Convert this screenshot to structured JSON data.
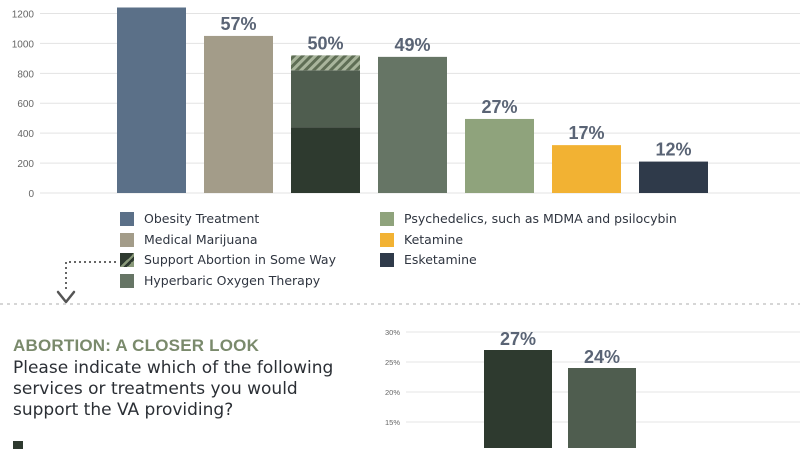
{
  "chart_data": [
    {
      "type": "bar",
      "y_ticks": [
        0,
        200,
        400,
        600,
        800,
        1000,
        1200
      ],
      "ylim": [
        0,
        1250
      ],
      "grid": true,
      "bars": [
        {
          "series": "Obesity Treatment",
          "value": 1240,
          "label": "",
          "color": "#5b7088"
        },
        {
          "series": "Medical Marijuana",
          "value": 1050,
          "label": "57%",
          "color": "#a39c89"
        },
        {
          "series": "Support Abortion in Some Way",
          "value": 920,
          "label": "50%",
          "color": "#2e3a2f",
          "segments": [
            {
              "name": "Support Abortion in Some Way",
              "value": 440,
              "color": "#2e3a2f"
            },
            {
              "name": "Hyperbaric Oxygen Therapy",
              "value": 380,
              "color": "#4f5d4f"
            },
            {
              "name": "hatched",
              "value": 100,
              "color": "#7e8c72"
            }
          ]
        },
        {
          "series": "Hyperbaric Oxygen Therapy",
          "value": 910,
          "label": "49%",
          "color": "#667565"
        },
        {
          "series": "Psychedelics, such as MDMA and psilocybin",
          "value": 495,
          "label": "27%",
          "color": "#8fa37c"
        },
        {
          "series": "Ketamine",
          "value": 320,
          "label": "17%",
          "color": "#f2b233"
        },
        {
          "series": "Esketamine",
          "value": 210,
          "label": "12%",
          "color": "#2f3a4a"
        }
      ]
    },
    {
      "type": "bar",
      "y_ticks": [
        "15%",
        "20%",
        "25%",
        "30%"
      ],
      "y_tick_values": [
        15,
        20,
        25,
        30
      ],
      "ylim": [
        13.5,
        31
      ],
      "grid": true,
      "bars": [
        {
          "value": 27,
          "label": "27%",
          "color": "#2e3a2f"
        },
        {
          "value": 24,
          "label": "24%",
          "color": "#4f5d4f"
        }
      ]
    }
  ],
  "legend": {
    "left": [
      {
        "label": "Obesity Treatment",
        "color": "#5b7088"
      },
      {
        "label": "Medical Marijuana",
        "color": "#a39c89"
      },
      {
        "label": "Support Abortion in Some Way",
        "color": "#2e3a2f",
        "hatched": true
      },
      {
        "label": "Hyperbaric Oxygen Therapy",
        "color": "#667565"
      }
    ],
    "right": [
      {
        "label": "Psychedelics, such as MDMA and psilocybin",
        "color": "#8fa37c"
      },
      {
        "label": "Ketamine",
        "color": "#f2b233"
      },
      {
        "label": "Esketamine",
        "color": "#2f3a4a"
      }
    ]
  },
  "abortion_section": {
    "title": "ABORTION: A CLOSER LOOK",
    "question": "Please indicate which of the following services or treatments you would support the VA providing?"
  }
}
